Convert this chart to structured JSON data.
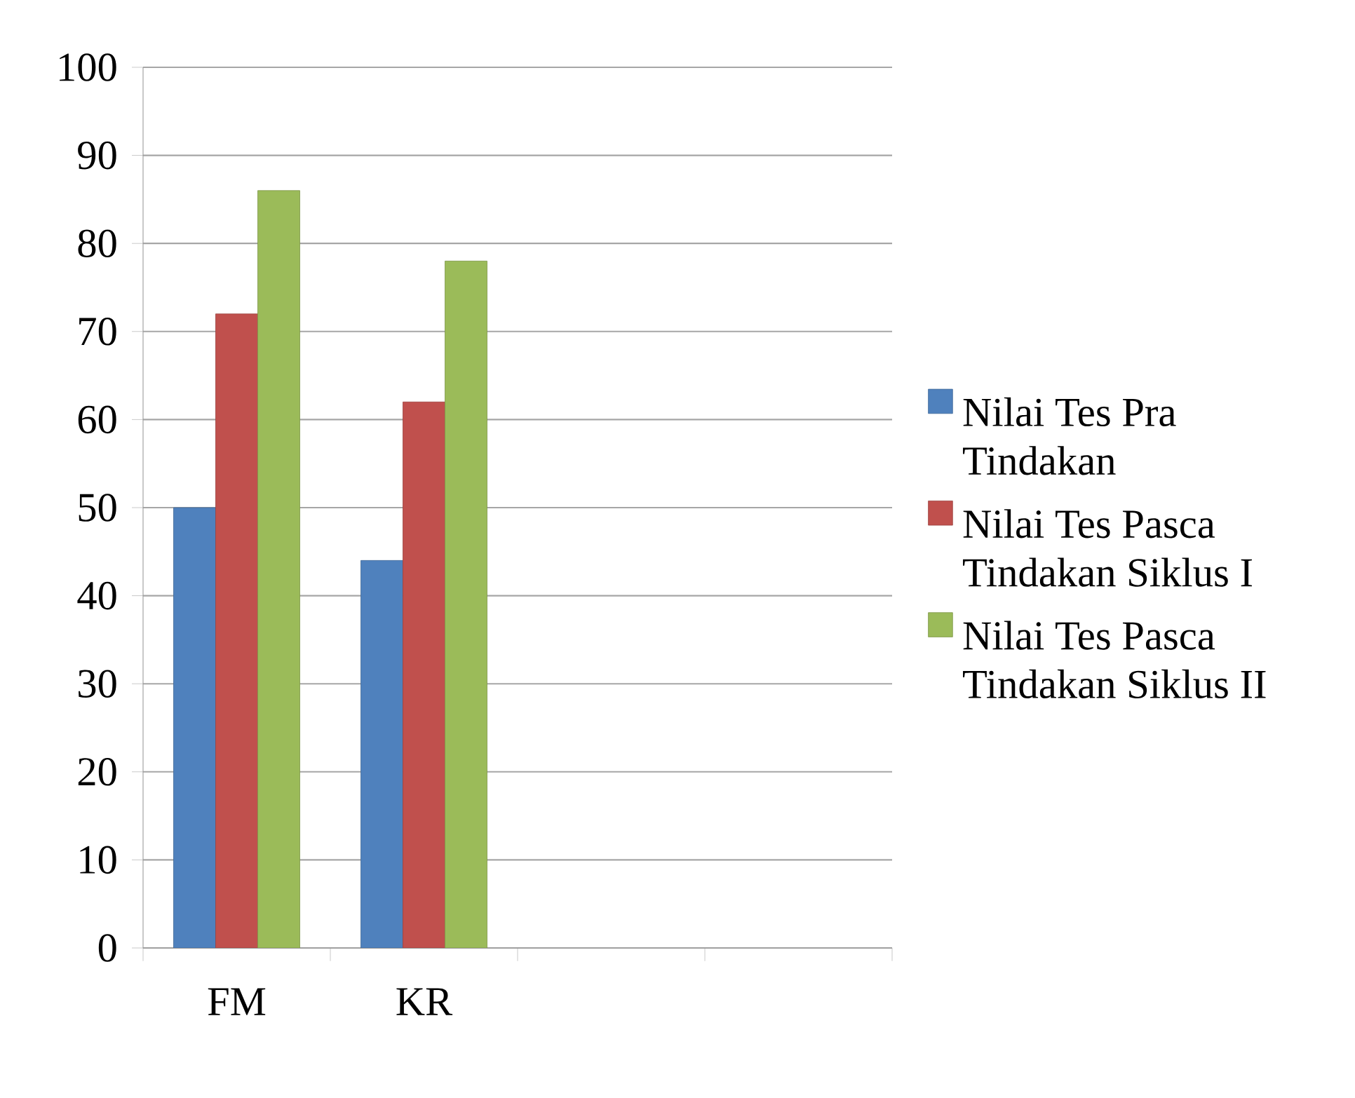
{
  "chart_data": {
    "type": "bar",
    "categories": [
      "FM",
      "KR",
      null,
      null
    ],
    "series": [
      {
        "name": "Nilai Tes Pra Tindakan",
        "color": "#4f81bd",
        "values": [
          50,
          44,
          null,
          null
        ]
      },
      {
        "name": "Nilai Tes Pasca Tindakan Siklus I",
        "color": "#c0504d",
        "values": [
          72,
          62,
          null,
          null
        ]
      },
      {
        "name": "Nilai Tes Pasca Tindakan Siklus II",
        "color": "#9bbb59",
        "values": [
          86,
          78,
          null,
          null
        ]
      }
    ],
    "ylim": [
      0,
      100
    ],
    "yticks": [
      0,
      10,
      20,
      30,
      40,
      50,
      60,
      70,
      80,
      90,
      100
    ],
    "grid": "y",
    "legend": "right"
  }
}
